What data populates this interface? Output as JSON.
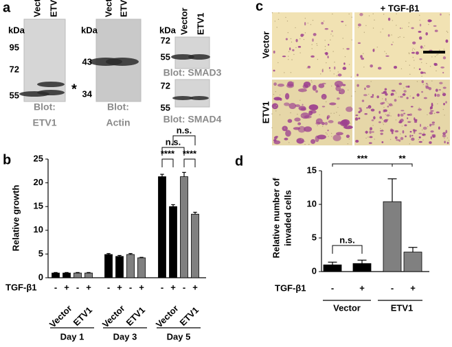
{
  "blots": {
    "panel_label": "a",
    "kda_label": "kDa",
    "lanes": [
      "Vector",
      "ETV1"
    ],
    "items": [
      {
        "markers": [
          95,
          72,
          55
        ],
        "caption": [
          "Blot:",
          "ETV1"
        ],
        "note": "*"
      },
      {
        "markers": [
          43,
          34
        ],
        "caption": [
          "Blot:",
          "Actin"
        ]
      },
      {
        "markers": [
          72,
          55
        ],
        "caption": [
          "Blot: SMAD3"
        ]
      },
      {
        "markers": [
          72,
          55
        ],
        "caption": [
          "Blot: SMAD4"
        ]
      }
    ]
  },
  "micrographs": {
    "panel_label": "c",
    "column_label": "+ TGF-β1",
    "row_labels": [
      "Vector",
      "ETV1"
    ]
  },
  "chart_data": [
    {
      "type": "bar",
      "panel_label": "b",
      "ylabel": [
        "Relative growth"
      ],
      "ylim": [
        0,
        25
      ],
      "yticks": [
        0,
        5,
        10,
        15,
        20,
        25
      ],
      "treatment_label": "TGF-β1",
      "treatment_levels": [
        "-",
        "+"
      ],
      "groups": [
        "Day 1",
        "Day 3",
        "Day 5"
      ],
      "series": [
        {
          "name": "Vector",
          "color": "#000000",
          "values": [
            1.0,
            1.0,
            4.9,
            4.5,
            21.3,
            15.0
          ],
          "errors": [
            0.1,
            0.1,
            0.2,
            0.2,
            0.5,
            0.4
          ]
        },
        {
          "name": "ETV1",
          "color": "#808080",
          "values": [
            1.0,
            1.0,
            4.9,
            4.2,
            21.3,
            13.4
          ],
          "errors": [
            0.1,
            0.1,
            0.2,
            0.1,
            0.9,
            0.4
          ]
        }
      ],
      "annotations": [
        "****",
        "****",
        "n.s.",
        "n.s."
      ]
    },
    {
      "type": "bar",
      "panel_label": "d",
      "ylabel": [
        "Relative number of",
        "invaded cells"
      ],
      "ylim": [
        0,
        15
      ],
      "yticks": [
        0,
        5,
        10,
        15
      ],
      "treatment_label": "TGF-β1",
      "treatment_levels": [
        "-",
        "+"
      ],
      "series": [
        {
          "name": "Vector",
          "color": "#000000",
          "values": [
            1.0,
            1.2
          ],
          "errors": [
            0.4,
            0.5
          ]
        },
        {
          "name": "ETV1",
          "color": "#808080",
          "values": [
            10.4,
            2.9
          ],
          "errors": [
            3.4,
            0.7
          ]
        }
      ],
      "annotations": [
        "n.s.",
        "***",
        "**"
      ]
    }
  ]
}
